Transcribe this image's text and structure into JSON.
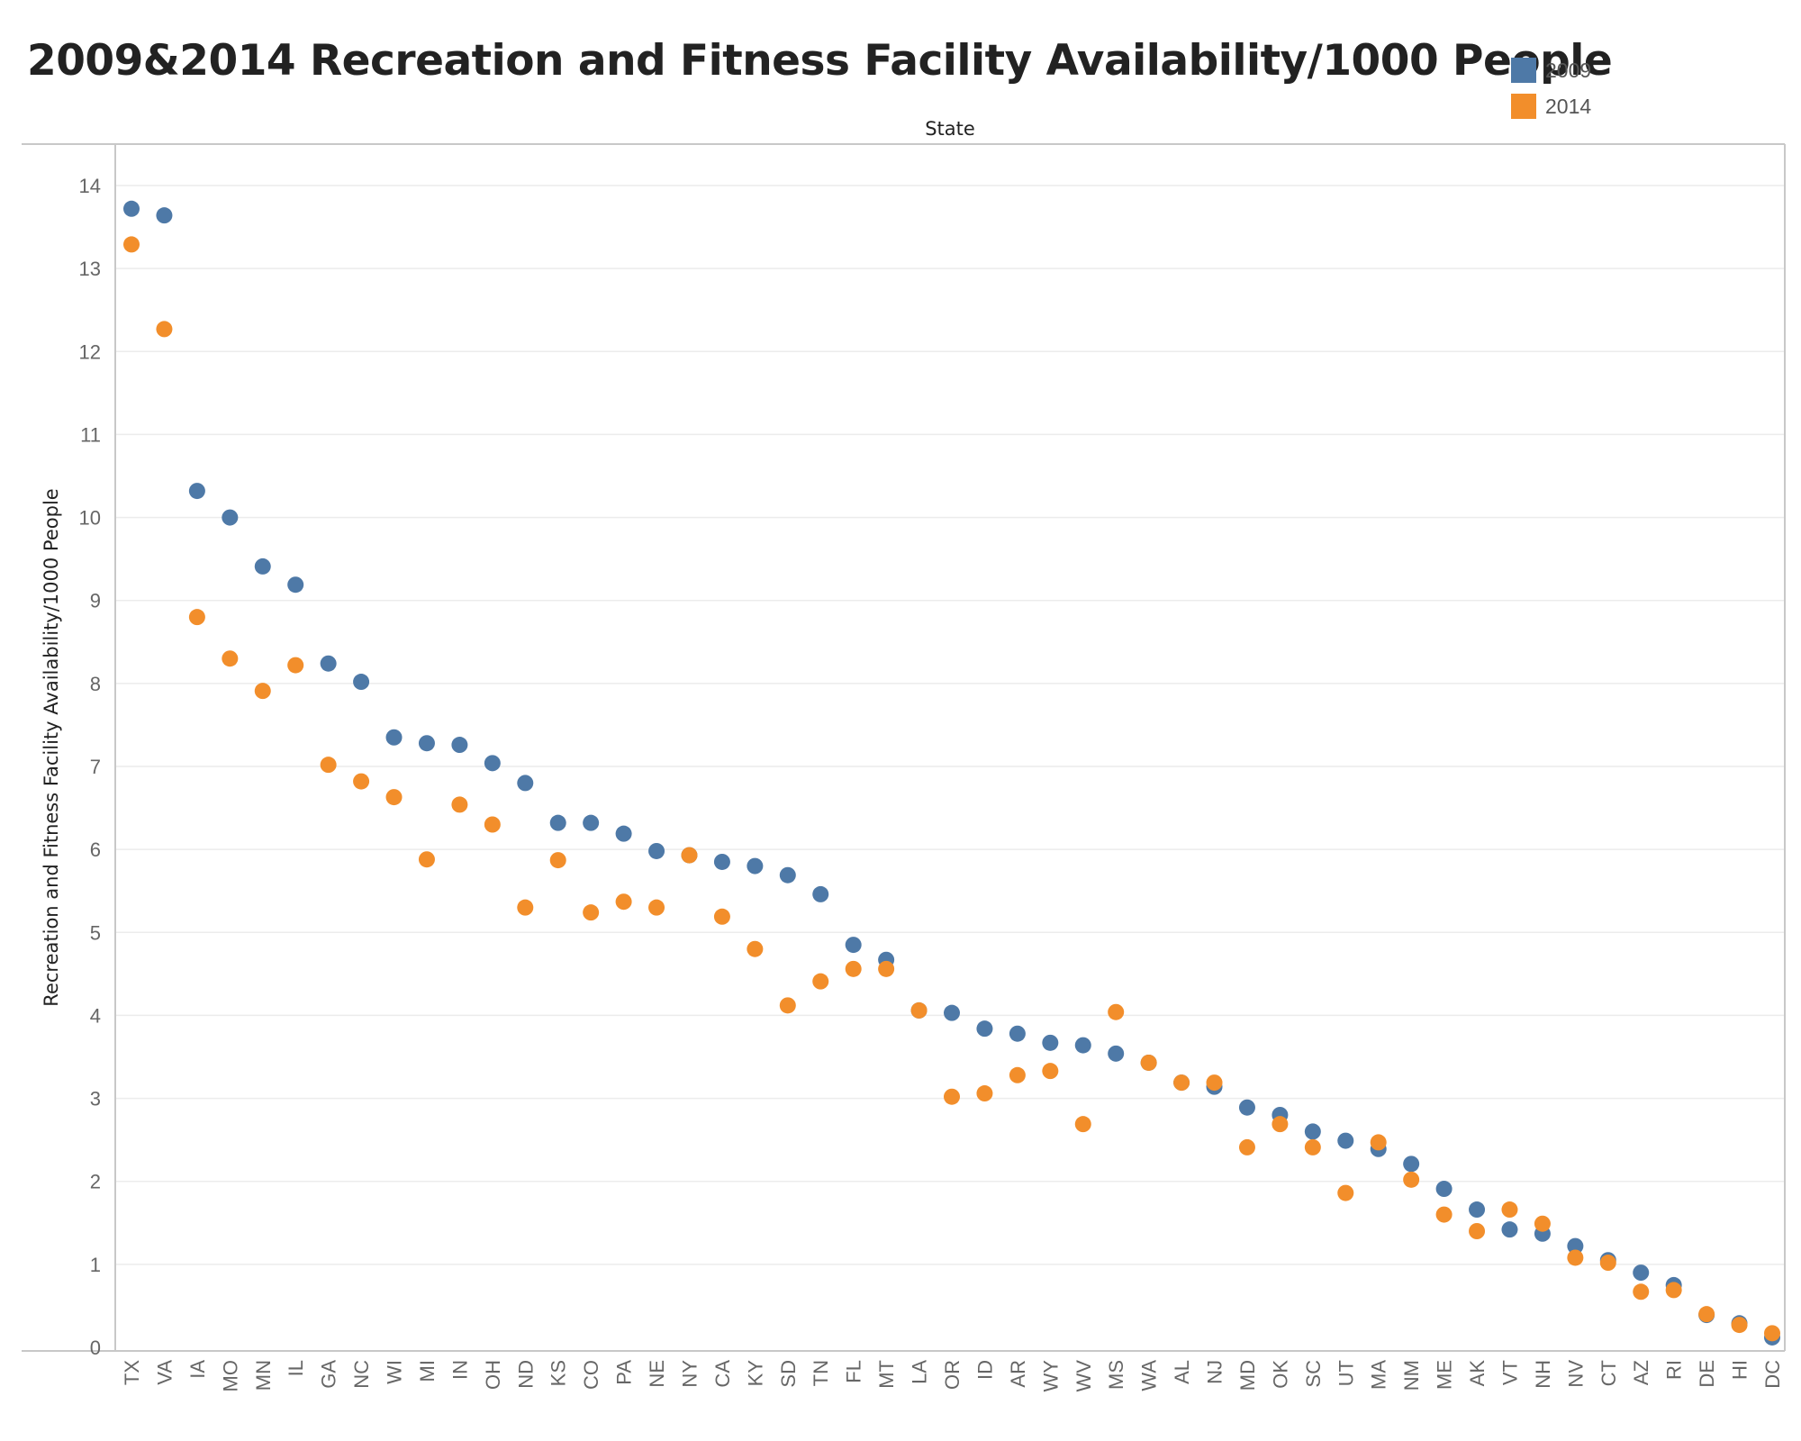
{
  "colors": {
    "series_2009": "#4e79a7",
    "series_2014": "#f28e2b",
    "grid": "#ececec",
    "axis": "#c8c8c8"
  },
  "chart_data": {
    "type": "scatter",
    "title": "2009&2014 Recreation and Fitness Facility Availability/1000 People",
    "xlabel": "State",
    "ylabel": "Recreation and Fitness Facility Availability/1000 People",
    "ylim": [
      0,
      14
    ],
    "yticks": [
      0,
      1,
      2,
      3,
      4,
      5,
      6,
      7,
      8,
      9,
      10,
      11,
      12,
      13,
      14
    ],
    "grid": true,
    "legend_position": "top-right",
    "categories": [
      "TX",
      "VA",
      "IA",
      "MO",
      "MN",
      "IL",
      "GA",
      "NC",
      "WI",
      "MI",
      "IN",
      "OH",
      "ND",
      "KS",
      "CO",
      "PA",
      "NE",
      "NY",
      "CA",
      "KY",
      "SD",
      "TN",
      "FL",
      "MT",
      "LA",
      "OR",
      "ID",
      "AR",
      "WY",
      "WV",
      "MS",
      "WA",
      "AL",
      "NJ",
      "MD",
      "OK",
      "SC",
      "UT",
      "MA",
      "NM",
      "ME",
      "AK",
      "VT",
      "NH",
      "NV",
      "CT",
      "AZ",
      "RI",
      "DE",
      "HI",
      "DC"
    ],
    "series": [
      {
        "name": "2009",
        "color": "#4e79a7",
        "values": [
          13.72,
          13.64,
          10.32,
          10.0,
          9.41,
          9.19,
          8.24,
          8.02,
          7.35,
          7.28,
          7.26,
          7.04,
          6.8,
          6.32,
          6.32,
          6.19,
          5.98,
          5.93,
          5.85,
          5.8,
          5.69,
          5.46,
          4.85,
          4.67,
          4.06,
          4.03,
          3.84,
          3.78,
          3.67,
          3.64,
          3.54,
          3.43,
          3.19,
          3.14,
          2.89,
          2.8,
          2.6,
          2.49,
          2.39,
          2.21,
          1.91,
          1.66,
          1.42,
          1.37,
          1.22,
          1.05,
          0.9,
          0.75,
          0.39,
          0.29,
          0.12
        ]
      },
      {
        "name": "2014",
        "color": "#f28e2b",
        "values": [
          13.29,
          12.27,
          8.8,
          8.3,
          7.91,
          8.22,
          7.02,
          6.82,
          6.63,
          5.88,
          6.54,
          6.3,
          5.3,
          5.87,
          5.24,
          5.37,
          5.3,
          5.93,
          5.19,
          4.8,
          4.12,
          4.41,
          4.56,
          4.56,
          4.06,
          3.02,
          3.06,
          3.28,
          3.33,
          2.69,
          4.04,
          3.43,
          3.19,
          3.19,
          2.41,
          2.69,
          2.41,
          1.86,
          2.47,
          2.02,
          1.6,
          1.4,
          1.66,
          1.49,
          1.08,
          1.02,
          0.67,
          0.69,
          0.4,
          0.27,
          0.17
        ]
      }
    ]
  }
}
